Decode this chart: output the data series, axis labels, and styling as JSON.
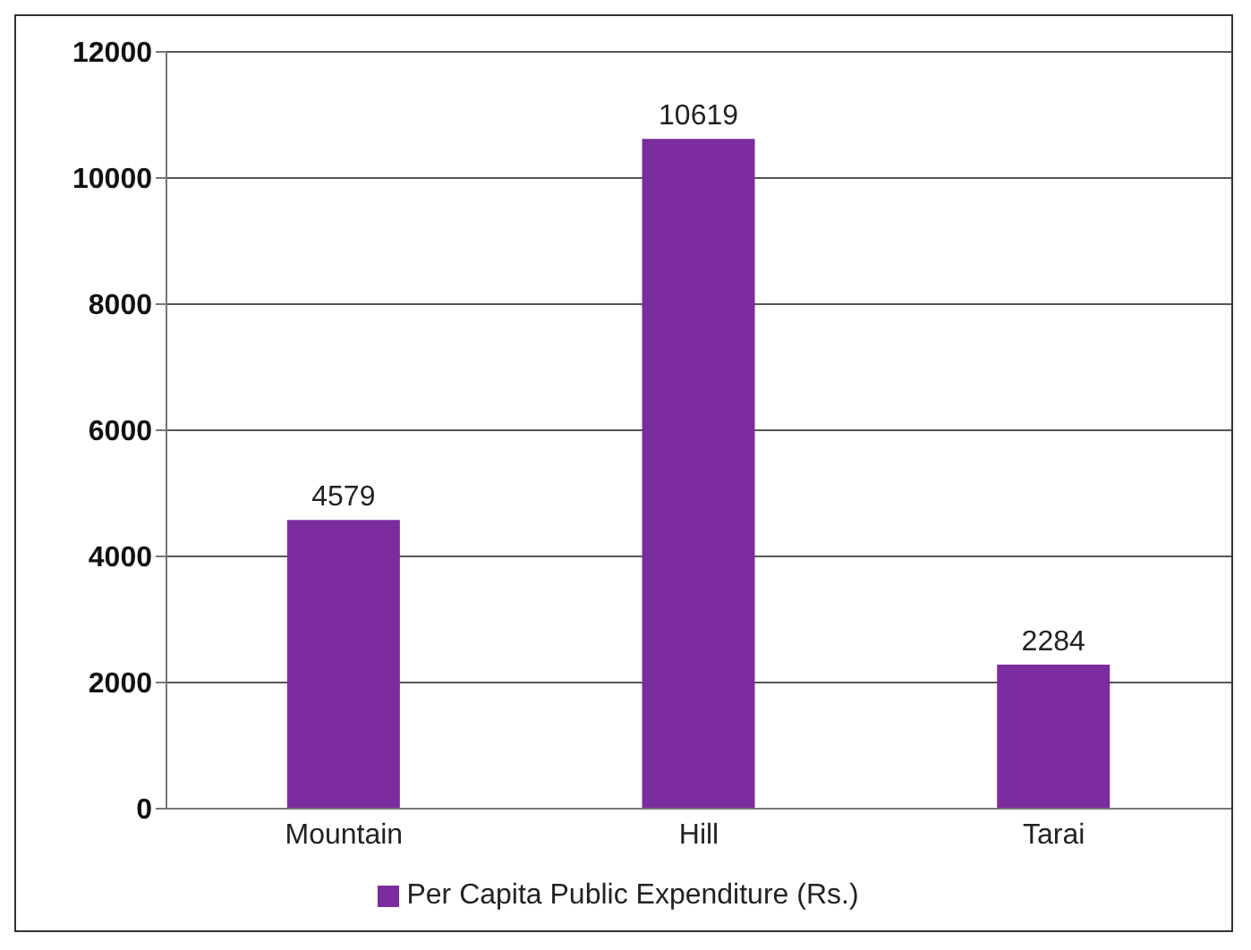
{
  "chart_data": {
    "type": "bar",
    "categories": [
      "Mountain",
      "Hill",
      "Tarai"
    ],
    "series": [
      {
        "name": "Per Capita Public Expenditure (Rs.)",
        "color": "#7b2c9e",
        "values": [
          4579,
          10619,
          2284
        ]
      }
    ],
    "ylim": [
      0,
      12000
    ],
    "yticks": [
      0,
      2000,
      4000,
      6000,
      8000,
      10000,
      12000
    ],
    "grid": "y",
    "legend": "bottom",
    "data_labels": true
  }
}
